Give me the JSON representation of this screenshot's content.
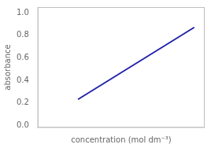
{
  "chart_data": {
    "type": "line",
    "xlabel": "concentration (mol dm⁻³)",
    "ylabel": "absorbance",
    "x": [
      0.27,
      1.05
    ],
    "values": [
      0.23,
      0.87
    ],
    "color": "#2222aa",
    "xlim": [
      0,
      1.12
    ],
    "ylim": [
      -0.02,
      1.05
    ],
    "xticks": [],
    "yticks": [
      {
        "value": 0,
        "label": "0.0"
      },
      0.2,
      0.4,
      0.6,
      0.8,
      {
        "value": 1.0,
        "label": "1.0"
      }
    ],
    "grid": false,
    "tick_labels": "y"
  }
}
